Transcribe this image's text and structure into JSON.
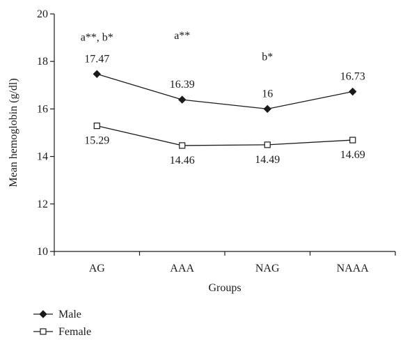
{
  "chart_data": {
    "type": "line",
    "title": "",
    "xlabel": "Groups",
    "ylabel": "Mean hemoglobin (g/dl)",
    "categories": [
      "AG",
      "AAA",
      "NAG",
      "NAAA"
    ],
    "ylim": [
      10,
      20
    ],
    "yticks": [
      "10",
      "12",
      "14",
      "16",
      "18",
      "20"
    ],
    "grid": false,
    "legend_position": "bottom-left",
    "series": [
      {
        "name": "Male",
        "marker": "filled-diamond",
        "values": [
          17.47,
          16.39,
          16,
          16.73
        ],
        "labels": [
          "17.47",
          "16.39",
          "16",
          "16.73"
        ]
      },
      {
        "name": "Female",
        "marker": "open-square",
        "values": [
          15.29,
          14.46,
          14.49,
          14.69
        ],
        "labels": [
          "15.29",
          "14.46",
          "14.49",
          "14.69"
        ]
      }
    ],
    "annotations": [
      {
        "category": "AG",
        "text": "a**, b*"
      },
      {
        "category": "AAA",
        "text": "a**"
      },
      {
        "category": "NAG",
        "text": "b*"
      }
    ]
  }
}
